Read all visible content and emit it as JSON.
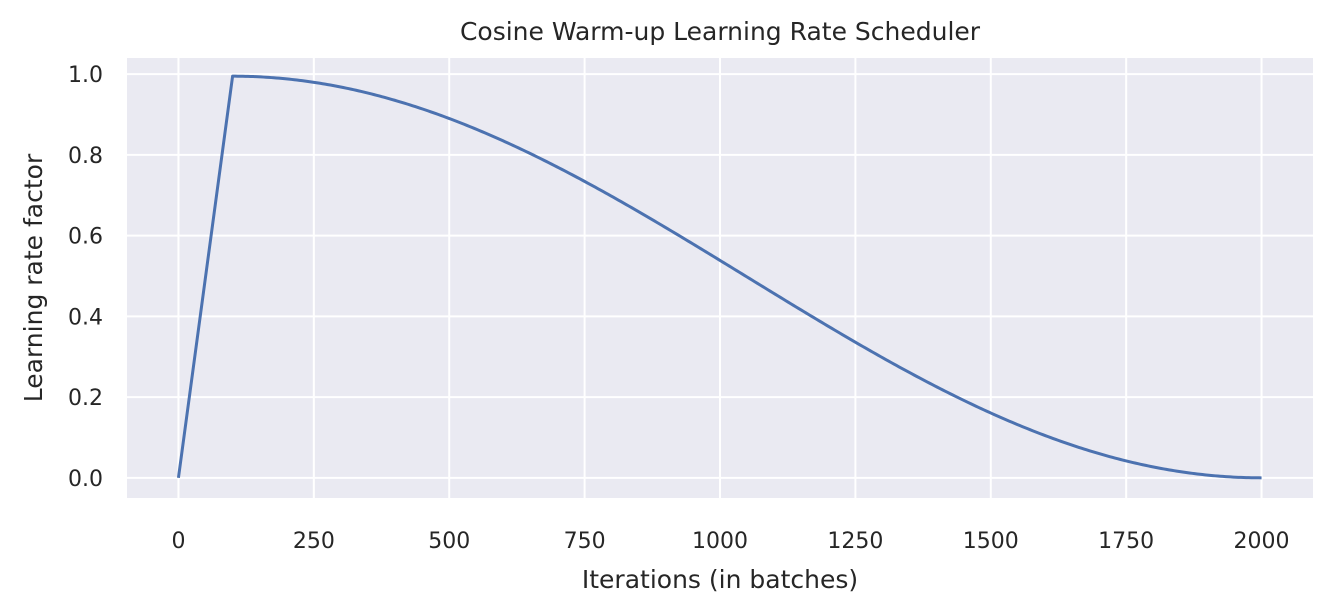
{
  "chart_data": {
    "type": "line",
    "title": "Cosine Warm-up Learning Rate Scheduler",
    "xlabel": "Iterations (in batches)",
    "ylabel": "Learning rate factor",
    "xlim": [
      -95,
      2095
    ],
    "ylim": [
      -0.05,
      1.04
    ],
    "xticks": [
      0,
      250,
      500,
      750,
      1000,
      1250,
      1500,
      1750,
      2000
    ],
    "yticks": [
      0.0,
      0.2,
      0.4,
      0.6,
      0.8,
      1.0
    ],
    "xtick_labels": [
      "0",
      "250",
      "500",
      "750",
      "1000",
      "1250",
      "1500",
      "1750",
      "2000"
    ],
    "ytick_labels": [
      "0.0",
      "0.2",
      "0.4",
      "0.6",
      "0.8",
      "1.0"
    ],
    "grid": true,
    "background_color": "#eaeaf2",
    "grid_color": "#ffffff",
    "series": [
      {
        "color": "#4c72b0",
        "x": [
          0,
          100,
          150,
          200,
          250,
          300,
          350,
          400,
          450,
          500,
          550,
          600,
          650,
          700,
          750,
          800,
          850,
          900,
          950,
          1000,
          1050,
          1100,
          1150,
          1200,
          1250,
          1300,
          1350,
          1400,
          1450,
          1500,
          1550,
          1600,
          1650,
          1700,
          1750,
          1800,
          1850,
          1900,
          1950,
          2000
        ],
        "y": [
          0.0,
          0.995,
          0.99,
          0.978,
          0.963,
          0.944,
          0.921,
          0.895,
          0.866,
          0.835,
          0.8,
          0.763,
          0.725,
          0.684,
          0.643,
          0.6,
          0.556,
          0.512,
          0.467,
          0.5,
          0.421,
          0.378,
          0.334,
          0.292,
          0.311,
          0.272,
          0.235,
          0.199,
          0.166,
          0.146,
          0.118,
          0.092,
          0.069,
          0.049,
          0.038,
          0.025,
          0.014,
          0.006,
          0.002,
          0.0
        ]
      }
    ]
  }
}
